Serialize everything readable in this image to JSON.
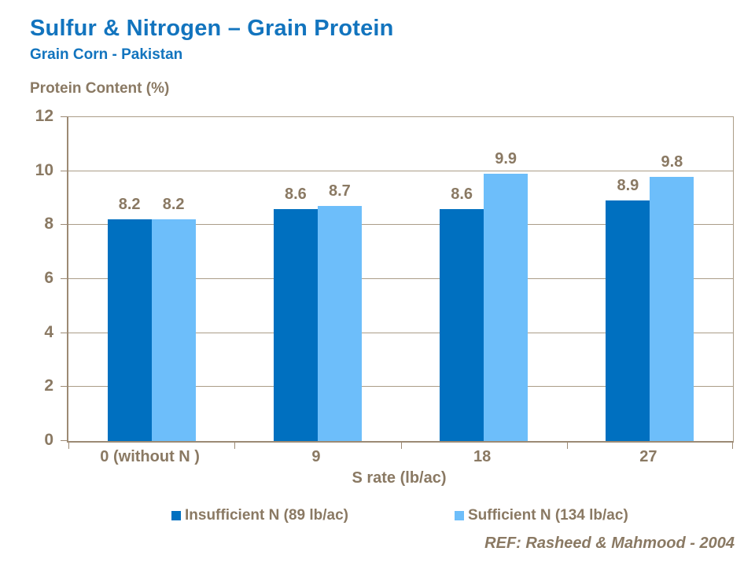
{
  "title": "Sulfur & Nitrogen – Grain Protein",
  "subtitle": "Grain Corn - Pakistan",
  "colors": {
    "title": "#1274BE",
    "text": "#8A7963",
    "axis": "#9C8A74",
    "grid": "#AB9D88"
  },
  "chart_data": {
    "type": "bar",
    "title": "Sulfur & Nitrogen – Grain Protein",
    "subtitle": "Grain Corn - Pakistan",
    "categories": [
      "0 (without N )",
      "9",
      "18",
      "27"
    ],
    "series": [
      {
        "name": "Insufficient N (89 lb/ac)",
        "color": "#0070C0",
        "values": [
          8.2,
          8.6,
          8.6,
          8.9
        ]
      },
      {
        "name": "Sufficient N (134 lb/ac)",
        "color": "#6DBEFA",
        "values": [
          8.2,
          8.7,
          9.9,
          9.8
        ]
      }
    ],
    "xlabel": "S rate (lb/ac)",
    "ylabel": "Protein Content (%)",
    "ylim": [
      0,
      12
    ],
    "yticks": [
      0,
      2,
      4,
      6,
      8,
      10,
      12
    ],
    "grid": true,
    "value_labels": true,
    "legend_position": "bottom"
  },
  "footer": {
    "ref": "REF: Rasheed & Mahmood - 2004"
  }
}
